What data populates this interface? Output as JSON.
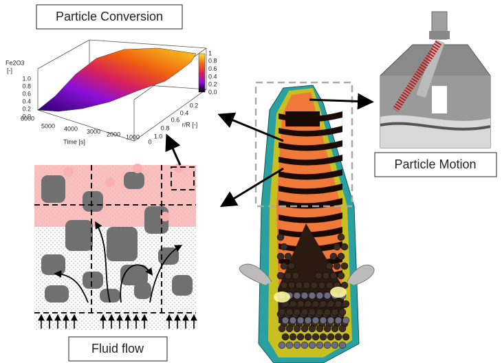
{
  "labels": {
    "particle_conversion": "Particle Conversion",
    "particle_motion": "Particle Motion",
    "fluid_flow": "Fluid flow"
  },
  "plot": {
    "z_label": "Fe2O3",
    "z_unit": "[-]",
    "z_ticks": [
      "1.0",
      "0.8",
      "0.6",
      "0.4",
      "0.2",
      "0.0"
    ],
    "time_label": "Time [s]",
    "time_ticks": [
      "6000",
      "5000",
      "4000",
      "3000",
      "2000",
      "1000",
      "0"
    ],
    "r_label": "r/R [-]",
    "r_ticks": [
      "0.2",
      "0.4",
      "0.6",
      "0.8",
      "1.0"
    ],
    "colorbar_ticks": [
      "1",
      "0.8",
      "0.6",
      "0.4",
      "0.2",
      "0.0"
    ]
  }
}
